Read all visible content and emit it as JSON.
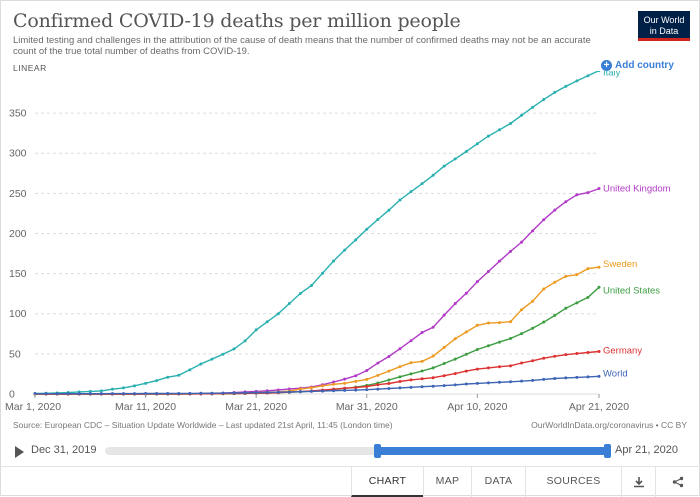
{
  "header": {
    "title": "Confirmed COVID-19 deaths per million people",
    "subtitle": "Limited testing and challenges in the attribution of the cause of death means that the number of confirmed deaths may not be an accurate count of the true total number of deaths from COVID-19.",
    "logo_line1": "Our World",
    "logo_line2": "in Data",
    "scale_toggle": "LINEAR",
    "add_country": "Add country"
  },
  "chart_data": {
    "type": "line",
    "title": "Confirmed COVID-19 deaths per million people",
    "x_range": [
      "2020-03-01",
      "2020-04-21"
    ],
    "ylim": [
      0,
      395
    ],
    "y_ticks": [
      0,
      50,
      100,
      150,
      200,
      250,
      300,
      350
    ],
    "x_ticks": [
      "Mar 1, 2020",
      "Mar 11, 2020",
      "Mar 21, 2020",
      "Mar 31, 2020",
      "Apr 10, 2020",
      "Apr 21, 2020"
    ],
    "grid": "horizontal",
    "legend": "right end labels",
    "x": [
      "Mar 1",
      "Mar 2",
      "Mar 3",
      "Mar 4",
      "Mar 5",
      "Mar 6",
      "Mar 7",
      "Mar 8",
      "Mar 9",
      "Mar 10",
      "Mar 11",
      "Mar 12",
      "Mar 13",
      "Mar 14",
      "Mar 15",
      "Mar 16",
      "Mar 17",
      "Mar 18",
      "Mar 19",
      "Mar 20",
      "Mar 21",
      "Mar 22",
      "Mar 23",
      "Mar 24",
      "Mar 25",
      "Mar 26",
      "Mar 27",
      "Mar 28",
      "Mar 29",
      "Mar 30",
      "Mar 31",
      "Apr 1",
      "Apr 2",
      "Apr 3",
      "Apr 4",
      "Apr 5",
      "Apr 6",
      "Apr 7",
      "Apr 8",
      "Apr 9",
      "Apr 10",
      "Apr 11",
      "Apr 12",
      "Apr 13",
      "Apr 14",
      "Apr 15",
      "Apr 16",
      "Apr 17",
      "Apr 18",
      "Apr 19",
      "Apr 20",
      "Apr 21"
    ],
    "series": [
      {
        "name": "Italy",
        "color": "#2ab0b0",
        "values": [
          0.6,
          0.9,
          1.3,
          1.8,
          2.6,
          3.3,
          3.9,
          6.0,
          7.6,
          10.2,
          13.3,
          16.7,
          20.9,
          23.3,
          30.1,
          37.4,
          43.4,
          49.6,
          56.2,
          66.2,
          79.9,
          90.0,
          100.0,
          112.8,
          125.3,
          135.2,
          150.5,
          165.7,
          179.3,
          192.1,
          205.3,
          217.4,
          229.0,
          241.7,
          252.1,
          262.1,
          272.5,
          284.0,
          293.0,
          302.2,
          311.9,
          321.4,
          329.2,
          337.1,
          347.3,
          357.2,
          366.9,
          375.8,
          383.3,
          390.2,
          396.5,
          403.0
        ]
      },
      {
        "name": "United Kingdom",
        "color": "#b13bc6",
        "values": [
          0,
          0,
          0,
          0,
          0,
          0,
          0,
          0,
          0,
          0,
          0,
          0,
          0.1,
          0.2,
          0.3,
          0.5,
          0.8,
          1.1,
          1.8,
          2.6,
          3.3,
          4.0,
          5.0,
          6.3,
          7.2,
          8.8,
          11.5,
          15.0,
          18.5,
          22.8,
          29.3,
          38.5,
          46.7,
          56.4,
          66.4,
          76.6,
          83.1,
          98.3,
          112.8,
          125.5,
          140.0,
          152.6,
          165.5,
          177.7,
          189.3,
          203.3,
          217.1,
          229.1,
          239.6,
          248.2,
          251.0,
          256.0
        ]
      },
      {
        "name": "Sweden",
        "color": "#ed9a20",
        "values": [
          0,
          0,
          0,
          0,
          0,
          0,
          0,
          0,
          0,
          0,
          0,
          0,
          0.1,
          0.1,
          0.1,
          0.2,
          0.3,
          0.3,
          0.6,
          1.0,
          1.7,
          2.1,
          2.6,
          3.6,
          6.2,
          7.9,
          10.2,
          12.1,
          13.3,
          15.8,
          18.2,
          23.2,
          28.5,
          34.0,
          39.0,
          40.6,
          47.2,
          58.1,
          68.8,
          77.3,
          85.6,
          88.4,
          89.0,
          90.1,
          105.0,
          115.6,
          130.8,
          139.3,
          146.6,
          148.7,
          156.2,
          158.0
        ]
      },
      {
        "name": "United States",
        "color": "#3c9e41",
        "values": [
          0,
          0,
          0,
          0,
          0,
          0,
          0,
          0,
          0,
          0,
          0,
          0,
          0,
          0,
          0.1,
          0.2,
          0.3,
          0.4,
          0.5,
          0.7,
          1.0,
          1.3,
          1.7,
          2.2,
          2.8,
          3.6,
          4.5,
          5.5,
          7.0,
          8.5,
          10.7,
          13.7,
          17.4,
          21.4,
          25.0,
          28.6,
          32.5,
          38.0,
          43.5,
          49.5,
          55.5,
          60.1,
          64.7,
          69.2,
          75.2,
          82.0,
          89.5,
          98.0,
          106.8,
          113.6,
          120.4,
          133.0
        ]
      },
      {
        "name": "Germany",
        "color": "#dd3232",
        "values": [
          0,
          0,
          0,
          0,
          0,
          0,
          0,
          0,
          0,
          0,
          0.1,
          0.1,
          0.1,
          0.1,
          0.1,
          0.2,
          0.3,
          0.5,
          0.6,
          0.8,
          1.0,
          1.2,
          1.6,
          2.2,
          3.0,
          3.9,
          4.8,
          6.0,
          7.2,
          8.0,
          9.4,
          11.6,
          13.1,
          15.6,
          17.6,
          19.0,
          20.3,
          22.8,
          25.4,
          28.5,
          31.0,
          32.5,
          34.0,
          35.1,
          38.6,
          41.4,
          44.6,
          47.0,
          49.0,
          50.4,
          51.7,
          53.0
        ]
      },
      {
        "name": "World",
        "color": "#3e64b5",
        "values": [
          0.4,
          0.4,
          0.4,
          0.4,
          0.4,
          0.4,
          0.4,
          0.5,
          0.5,
          0.5,
          0.6,
          0.6,
          0.7,
          0.7,
          0.8,
          0.9,
          1.0,
          1.1,
          1.3,
          1.5,
          1.7,
          2.0,
          2.2,
          2.5,
          2.9,
          3.2,
          3.6,
          4.1,
          4.5,
          4.9,
          5.4,
          6.1,
          6.9,
          7.6,
          8.3,
          9.1,
          9.7,
          10.5,
          11.4,
          12.4,
          13.2,
          13.9,
          14.6,
          15.2,
          16.0,
          16.9,
          18.2,
          19.3,
          20.1,
          20.7,
          21.3,
          22.0
        ]
      }
    ]
  },
  "footer": {
    "source": "Source: European CDC – Situation Update Worldwide – Last updated 21st April, 11:45 (London time)",
    "credit": "OurWorldInData.org/coronavirus • CC BY"
  },
  "timeline": {
    "start_label": "Dec 31, 2019",
    "end_label": "Apr 21, 2020"
  },
  "tabs": [
    "CHART",
    "MAP",
    "DATA",
    "SOURCES"
  ],
  "icons": {
    "download": "download-icon",
    "share": "share-icon"
  }
}
